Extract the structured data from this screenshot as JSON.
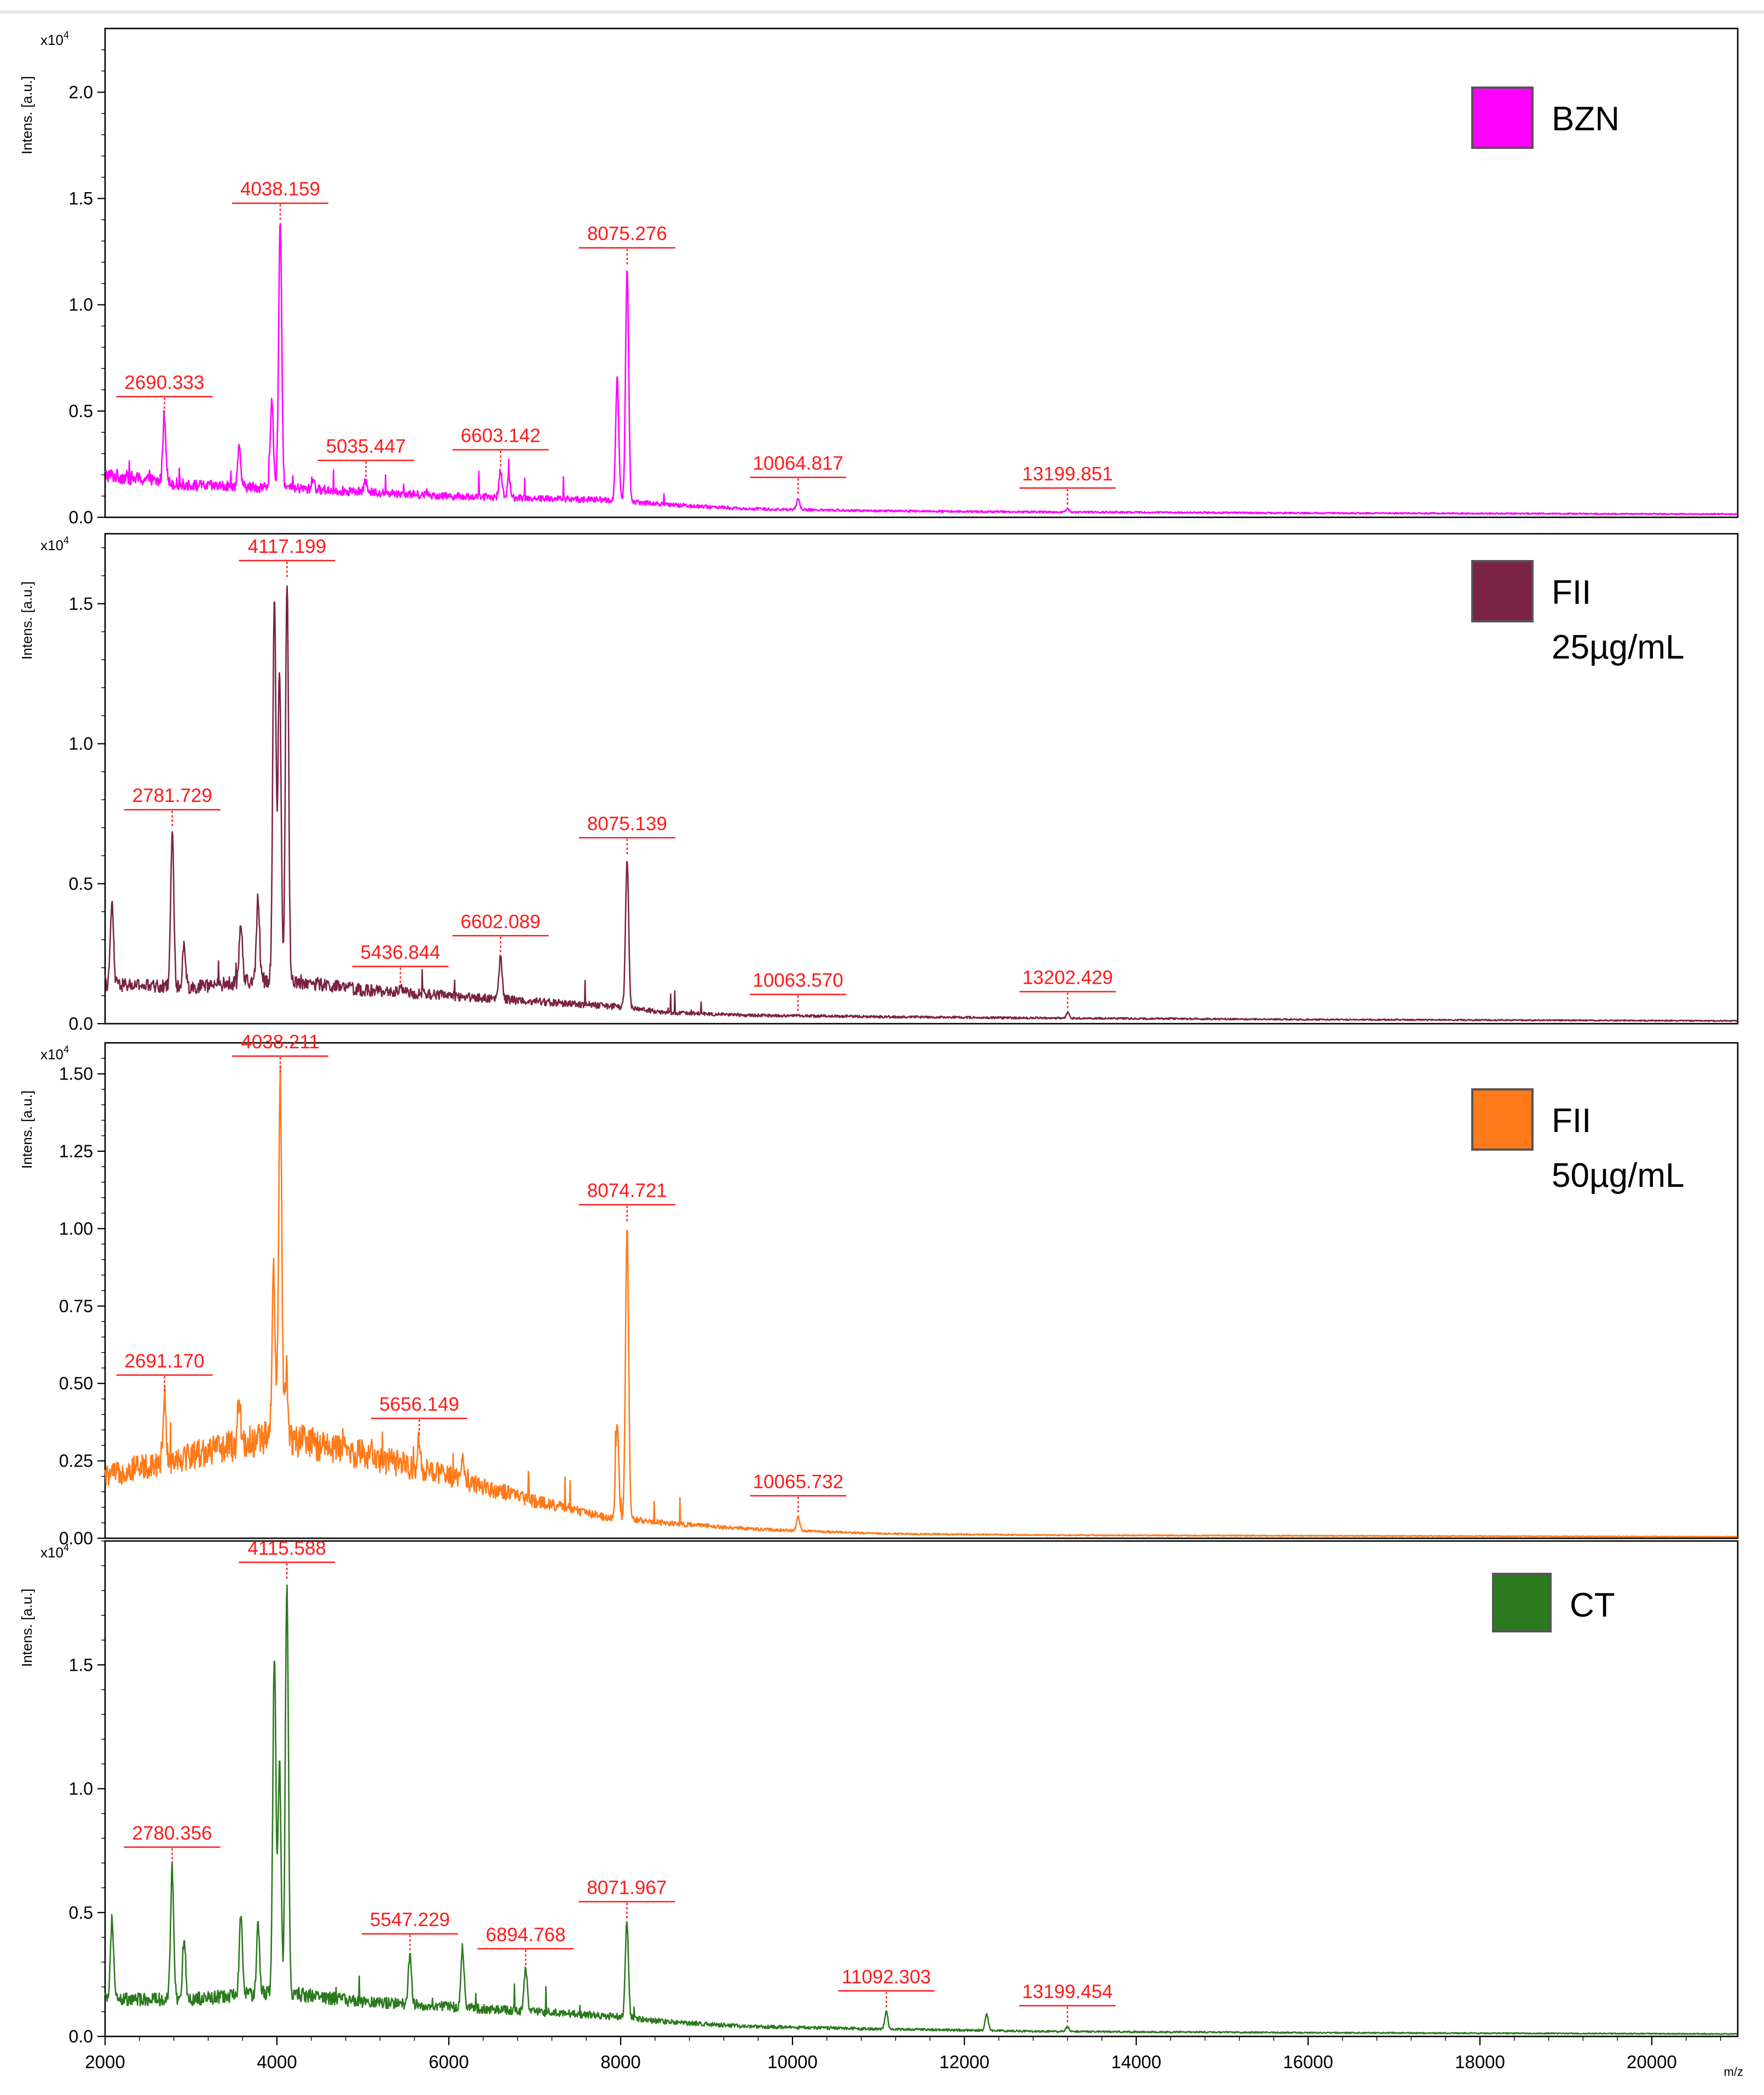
{
  "chart_data": [
    {
      "type": "line",
      "name": "BZN",
      "legend": [
        "BZN"
      ],
      "color": "#ff00ff",
      "ylabel": "Intens. [a.u.]",
      "scale": "x10",
      "scale_exp": "4",
      "ylim": [
        0,
        2.3
      ],
      "yticks": [
        0.0,
        0.5,
        1.0,
        1.5,
        2.0
      ],
      "ytick_labels": [
        "0.0",
        "0.5",
        "1.0",
        "1.5",
        "2.0"
      ],
      "baseline": [
        [
          2000,
          0.2
        ],
        [
          3000,
          0.15
        ],
        [
          4000,
          0.14
        ],
        [
          5000,
          0.12
        ],
        [
          6000,
          0.1
        ],
        [
          7000,
          0.09
        ],
        [
          8000,
          0.08
        ],
        [
          8500,
          0.06
        ],
        [
          9500,
          0.04
        ],
        [
          11000,
          0.03
        ],
        [
          13000,
          0.025
        ],
        [
          16000,
          0.02
        ],
        [
          21000,
          0.015
        ]
      ],
      "peaks": [
        {
          "mz": 2690.333,
          "height": 0.47,
          "label": "2690.333"
        },
        {
          "mz": 3560,
          "height": 0.32
        },
        {
          "mz": 3940,
          "height": 0.55
        },
        {
          "mz": 4038.159,
          "height": 1.38,
          "label": "4038.159"
        },
        {
          "mz": 4420,
          "height": 0.18
        },
        {
          "mz": 5035.447,
          "height": 0.17,
          "label": "5035.447"
        },
        {
          "mz": 6603.142,
          "height": 0.22,
          "label": "6603.142"
        },
        {
          "mz": 6700,
          "height": 0.18
        },
        {
          "mz": 7960,
          "height": 0.65
        },
        {
          "mz": 8075.276,
          "height": 1.17,
          "label": "8075.276"
        },
        {
          "mz": 10064.817,
          "height": 0.09,
          "label": "10064.817"
        },
        {
          "mz": 13199.851,
          "height": 0.04,
          "label": "13199.851"
        }
      ]
    },
    {
      "type": "line",
      "name": "FII 25µg/mL",
      "legend": [
        "FII",
        "25µg/mL"
      ],
      "color": "#7b2345",
      "ylabel": "Intens. [a.u.]",
      "scale": "x10",
      "scale_exp": "4",
      "ylim": [
        0,
        1.75
      ],
      "yticks": [
        0.0,
        0.5,
        1.0,
        1.5
      ],
      "ytick_labels": [
        "0.0",
        "0.5",
        "1.0",
        "1.5"
      ],
      "baseline": [
        [
          2000,
          0.14
        ],
        [
          3000,
          0.13
        ],
        [
          4000,
          0.16
        ],
        [
          5000,
          0.12
        ],
        [
          6000,
          0.1
        ],
        [
          7000,
          0.08
        ],
        [
          8000,
          0.06
        ],
        [
          8500,
          0.04
        ],
        [
          9500,
          0.03
        ],
        [
          11000,
          0.025
        ],
        [
          13000,
          0.02
        ],
        [
          16000,
          0.015
        ],
        [
          21000,
          0.01
        ]
      ],
      "peaks": [
        {
          "mz": 2080,
          "height": 0.43
        },
        {
          "mz": 2781.729,
          "height": 0.69,
          "label": "2781.729"
        },
        {
          "mz": 2920,
          "height": 0.28
        },
        {
          "mz": 3580,
          "height": 0.37
        },
        {
          "mz": 3780,
          "height": 0.45
        },
        {
          "mz": 3970,
          "height": 1.53
        },
        {
          "mz": 4030,
          "height": 1.28
        },
        {
          "mz": 4117.199,
          "height": 1.58,
          "label": "4117.199"
        },
        {
          "mz": 5436.844,
          "height": 0.13,
          "label": "5436.844"
        },
        {
          "mz": 6602.089,
          "height": 0.24,
          "label": "6602.089"
        },
        {
          "mz": 8075.139,
          "height": 0.59,
          "label": "8075.139"
        },
        {
          "mz": 10063.57,
          "height": 0.03,
          "label": "10063.570"
        },
        {
          "mz": 13202.429,
          "height": 0.04,
          "label": "13202.429"
        }
      ]
    },
    {
      "type": "line",
      "name": "FII 50µg/mL",
      "legend": [
        "FII",
        "50µg/mL"
      ],
      "color": "#ff7a1a",
      "ylabel": "Intens. [a.u.]",
      "scale": "x10",
      "scale_exp": "4",
      "ylim": [
        0,
        1.6
      ],
      "yticks": [
        0.0,
        0.25,
        0.5,
        0.75,
        1.0,
        1.25,
        1.5
      ],
      "ytick_labels": [
        "0.00",
        "0.25",
        "0.50",
        "0.75",
        "1.00",
        "1.25",
        "1.50"
      ],
      "baseline": [
        [
          2000,
          0.2
        ],
        [
          3000,
          0.27
        ],
        [
          4000,
          0.33
        ],
        [
          5000,
          0.27
        ],
        [
          6000,
          0.2
        ],
        [
          7000,
          0.12
        ],
        [
          7800,
          0.07
        ],
        [
          8500,
          0.05
        ],
        [
          9500,
          0.03
        ],
        [
          11000,
          0.015
        ],
        [
          13000,
          0.01
        ],
        [
          21000,
          0.005
        ]
      ],
      "peaks": [
        {
          "mz": 2691.17,
          "height": 0.46,
          "label": "2691.170"
        },
        {
          "mz": 3560,
          "height": 0.44
        },
        {
          "mz": 3960,
          "height": 0.85
        },
        {
          "mz": 4038.211,
          "height": 1.49,
          "label": "4038.211"
        },
        {
          "mz": 4110,
          "height": 0.55
        },
        {
          "mz": 5656.149,
          "height": 0.32,
          "label": "5656.149"
        },
        {
          "mz": 6160,
          "height": 0.28
        },
        {
          "mz": 7960,
          "height": 0.37
        },
        {
          "mz": 8074.721,
          "height": 1.01,
          "label": "8074.721"
        },
        {
          "mz": 10065.732,
          "height": 0.07,
          "label": "10065.732"
        }
      ]
    },
    {
      "type": "line",
      "name": "CT",
      "legend": [
        "CT"
      ],
      "color": "#2b7a1e",
      "ylabel": "Intens. [a.u.]",
      "scale": "x10",
      "scale_exp": "4",
      "ylim": [
        0,
        2.0
      ],
      "yticks": [
        0.0,
        0.5,
        1.0,
        1.5
      ],
      "ytick_labels": [
        "0.0",
        "0.5",
        "1.0",
        "1.5"
      ],
      "xlabel": "m/z",
      "xlim": [
        2000,
        21000
      ],
      "xticks": [
        2000,
        4000,
        6000,
        8000,
        10000,
        12000,
        14000,
        16000,
        18000,
        20000
      ],
      "xtick_labels": [
        "2000",
        "4000",
        "6000",
        "8000",
        "10000",
        "12000",
        "14000",
        "16000",
        "18000",
        "20000"
      ],
      "baseline": [
        [
          2000,
          0.15
        ],
        [
          3000,
          0.15
        ],
        [
          4000,
          0.18
        ],
        [
          5000,
          0.14
        ],
        [
          6000,
          0.12
        ],
        [
          7000,
          0.1
        ],
        [
          8000,
          0.08
        ],
        [
          8500,
          0.06
        ],
        [
          9500,
          0.04
        ],
        [
          11000,
          0.03
        ],
        [
          13000,
          0.02
        ],
        [
          16000,
          0.015
        ],
        [
          21000,
          0.01
        ]
      ],
      "peaks": [
        {
          "mz": 2080,
          "height": 0.47
        },
        {
          "mz": 2780.356,
          "height": 0.68,
          "label": "2780.356"
        },
        {
          "mz": 2920,
          "height": 0.4
        },
        {
          "mz": 3580,
          "height": 0.49
        },
        {
          "mz": 3780,
          "height": 0.44
        },
        {
          "mz": 3970,
          "height": 1.53
        },
        {
          "mz": 4030,
          "height": 1.1
        },
        {
          "mz": 4115.588,
          "height": 1.83,
          "label": "4115.588"
        },
        {
          "mz": 5547.229,
          "height": 0.33,
          "label": "5547.229"
        },
        {
          "mz": 6160,
          "height": 0.36
        },
        {
          "mz": 6894.768,
          "height": 0.27,
          "label": "6894.768"
        },
        {
          "mz": 8071.967,
          "height": 0.46,
          "label": "8071.967"
        },
        {
          "mz": 11092.303,
          "height": 0.1,
          "label": "11092.303"
        },
        {
          "mz": 12260,
          "height": 0.09
        },
        {
          "mz": 13199.454,
          "height": 0.04,
          "label": "13199.454"
        }
      ]
    }
  ]
}
